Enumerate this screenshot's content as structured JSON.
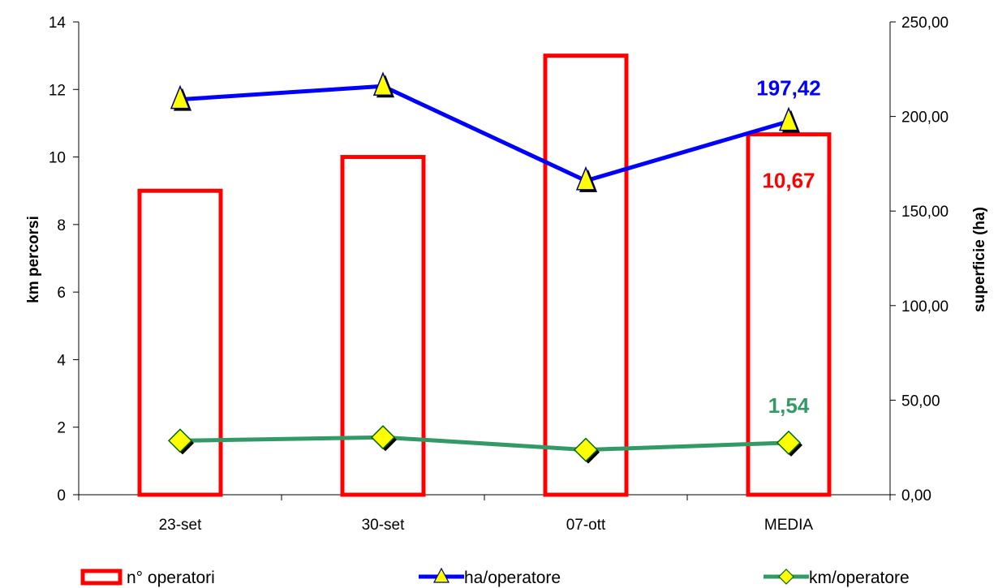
{
  "chart_data": {
    "type": "bar",
    "categories": [
      "23-set",
      "30-set",
      "07-ott",
      "MEDIA"
    ],
    "y_left": {
      "label": "km percorsi",
      "range": [
        0,
        14
      ],
      "ticks": [
        "0",
        "2",
        "4",
        "6",
        "8",
        "10",
        "12",
        "14"
      ]
    },
    "y_right": {
      "label": "superficie (ha)",
      "range": [
        0,
        250
      ],
      "ticks": [
        "0,00",
        "50,00",
        "100,00",
        "150,00",
        "200,00",
        "250,00"
      ]
    },
    "series": [
      {
        "name": "n° operatori",
        "kind": "bar",
        "axis": "left",
        "color": "#ff0000",
        "values": [
          9,
          10,
          13,
          10.67
        ]
      },
      {
        "name": "ha/operatore",
        "kind": "line",
        "axis": "right",
        "color": "#0000ff",
        "marker": "triangle",
        "values": [
          209,
          216,
          166,
          197.42
        ]
      },
      {
        "name": "km/operatore",
        "kind": "line",
        "axis": "left",
        "color": "#339966",
        "marker": "diamond",
        "values": [
          1.6,
          1.7,
          1.33,
          1.54
        ]
      }
    ],
    "data_labels": [
      {
        "series": "n° operatori",
        "category": "MEDIA",
        "text": "10,67",
        "color": "#ff0000"
      },
      {
        "series": "ha/operatore",
        "category": "MEDIA",
        "text": "197,42",
        "color": "#0000ff"
      },
      {
        "series": "km/operatore",
        "category": "MEDIA",
        "text": "1,54",
        "color": "#339966"
      }
    ],
    "legend": {
      "placement": "bottom",
      "items": [
        "n° operatori",
        "ha/operatore",
        "km/operatore"
      ]
    },
    "grid": false
  }
}
